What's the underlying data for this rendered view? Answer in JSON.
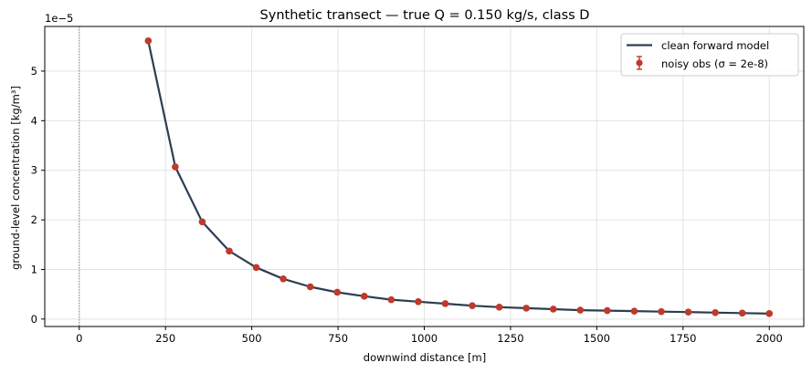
{
  "chart_data": {
    "type": "line",
    "title": "Synthetic transect — true Q = 0.150 kg/s, class D",
    "xlabel": "downwind distance  [m]",
    "ylabel": "ground-level concentration [kg/m³]",
    "y_offset_label": "1e−5",
    "xlim": [
      -100,
      2100
    ],
    "ylim": [
      -0.15,
      5.9
    ],
    "x_ticks": [
      0,
      250,
      500,
      750,
      1000,
      1250,
      1500,
      1750,
      2000
    ],
    "y_ticks": [
      0,
      1,
      2,
      3,
      4,
      5
    ],
    "grid": true,
    "source_marker_x": 0,
    "legend_position": "upper right",
    "x": [
      200,
      278.3,
      356.5,
      434.8,
      513,
      591.3,
      669.6,
      747.8,
      826.1,
      904.3,
      982.6,
      1060.9,
      1139.1,
      1217.4,
      1295.7,
      1373.9,
      1452.2,
      1530.4,
      1608.7,
      1687,
      1765.2,
      1843.5,
      1921.7,
      2000
    ],
    "series": [
      {
        "name": "clean forward model",
        "kind": "line",
        "color": "#2c3e50",
        "values": [
          5.61,
          3.07,
          1.96,
          1.37,
          1.04,
          0.81,
          0.65,
          0.54,
          0.46,
          0.39,
          0.35,
          0.31,
          0.27,
          0.24,
          0.22,
          0.2,
          0.18,
          0.17,
          0.16,
          0.15,
          0.14,
          0.13,
          0.12,
          0.11
        ]
      },
      {
        "name": "noisy obs (σ = 2e-8)",
        "kind": "errorbar",
        "color": "#c0392b",
        "values": [
          5.61,
          3.07,
          1.96,
          1.37,
          1.04,
          0.81,
          0.65,
          0.54,
          0.46,
          0.39,
          0.35,
          0.31,
          0.27,
          0.24,
          0.22,
          0.2,
          0.18,
          0.17,
          0.16,
          0.15,
          0.14,
          0.13,
          0.12,
          0.11
        ],
        "error": 0.002
      }
    ]
  }
}
